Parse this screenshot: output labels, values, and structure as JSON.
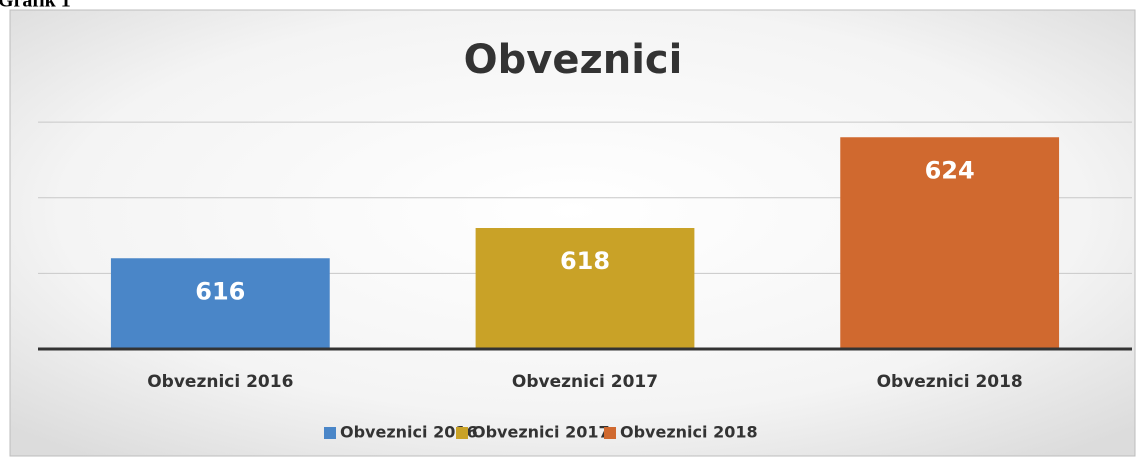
{
  "caption": "Grafik 1",
  "chart_data": {
    "type": "bar",
    "title": "Obveznici",
    "categories": [
      "Obveznici 2016",
      "Obveznici 2017",
      "Obveznici 2018"
    ],
    "values": [
      616,
      618,
      624
    ],
    "colors": [
      "#4a86c8",
      "#c9a227",
      "#d0692f"
    ],
    "ylim": [
      610,
      626
    ],
    "yticks": [
      610,
      615,
      620,
      625
    ],
    "grid": true,
    "legend": "bottom"
  }
}
